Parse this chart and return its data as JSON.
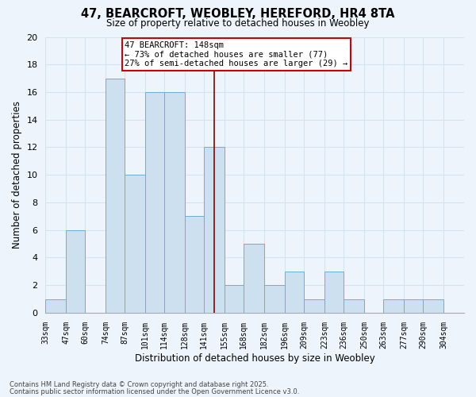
{
  "title": "47, BEARCROFT, WEOBLEY, HEREFORD, HR4 8TA",
  "subtitle": "Size of property relative to detached houses in Weobley",
  "xlabel": "Distribution of detached houses by size in Weobley",
  "ylabel": "Number of detached properties",
  "bin_labels": [
    "33sqm",
    "47sqm",
    "60sqm",
    "74sqm",
    "87sqm",
    "101sqm",
    "114sqm",
    "128sqm",
    "141sqm",
    "155sqm",
    "168sqm",
    "182sqm",
    "196sqm",
    "209sqm",
    "223sqm",
    "236sqm",
    "250sqm",
    "263sqm",
    "277sqm",
    "290sqm",
    "304sqm"
  ],
  "bin_edges": [
    33,
    47,
    60,
    74,
    87,
    101,
    114,
    128,
    141,
    155,
    168,
    182,
    196,
    209,
    223,
    236,
    250,
    263,
    277,
    290,
    304
  ],
  "bar_counts": [
    1,
    6,
    0,
    17,
    10,
    16,
    16,
    7,
    12,
    2,
    5,
    2,
    3,
    1,
    3,
    1,
    0,
    1,
    1,
    1
  ],
  "bar_color": "#cce0f0",
  "bar_edge_color": "#6aaed6",
  "grid_color": "#d0e4f4",
  "vline_x": 148,
  "vline_color": "#8b0000",
  "annotation_line1": "47 BEARCROFT: 148sqm",
  "annotation_line2": "← 73% of detached houses are smaller (77)",
  "annotation_line3": "27% of semi-detached houses are larger (29) →",
  "annotation_box_color": "#ffffff",
  "annotation_border_color": "#cc0000",
  "ylim": [
    0,
    20
  ],
  "yticks": [
    0,
    2,
    4,
    6,
    8,
    10,
    12,
    14,
    16,
    18,
    20
  ],
  "footnote1": "Contains HM Land Registry data © Crown copyright and database right 2025.",
  "footnote2": "Contains public sector information licensed under the Open Government Licence v3.0.",
  "bg_color": "#eef4fb",
  "plot_bg_color": "#eef4fb"
}
